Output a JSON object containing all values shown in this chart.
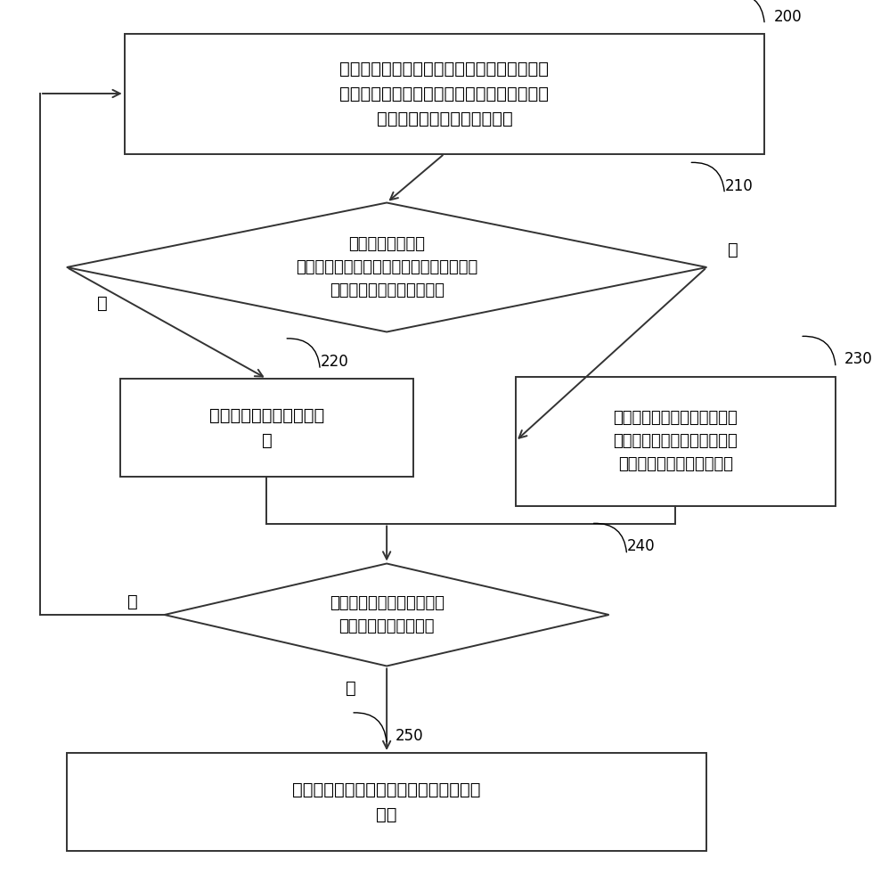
{
  "bg_color": "#ffffff",
  "box_color": "#ffffff",
  "box_edge_color": "#333333",
  "text_color": "#000000",
  "arrow_color": "#333333",
  "box200_text": "从第一指定存储区域读取预先保存的一组配置\n信息，以及从第二指定存储区域读取与上述一\n组配置信息对应的参考校验值",
  "diamond210_text": "计算一组配置信息\n对应的校验值，并判断计算所得的校验值与\n读取的参考校验值是否一致",
  "box220_text": "直接输出上述一组配置信\n息",
  "box230_text": "基于上述一组配置信息对应的\n预设处理方式，确定上述一组\n配置信息对应的输出结果。",
  "diamond240_text": "判断第一指定存储区域是否\n存在未读取的配置信息",
  "box250_text": "结束配置信息的读取操作，进入下一工作\n状态",
  "label_200": "200",
  "label_210": "210",
  "label_220": "220",
  "label_230": "230",
  "label_240": "240",
  "label_250": "250",
  "yes_label": "是",
  "no_label": "否",
  "font_size": 14,
  "ref_font_size": 12,
  "label_font_size": 14
}
